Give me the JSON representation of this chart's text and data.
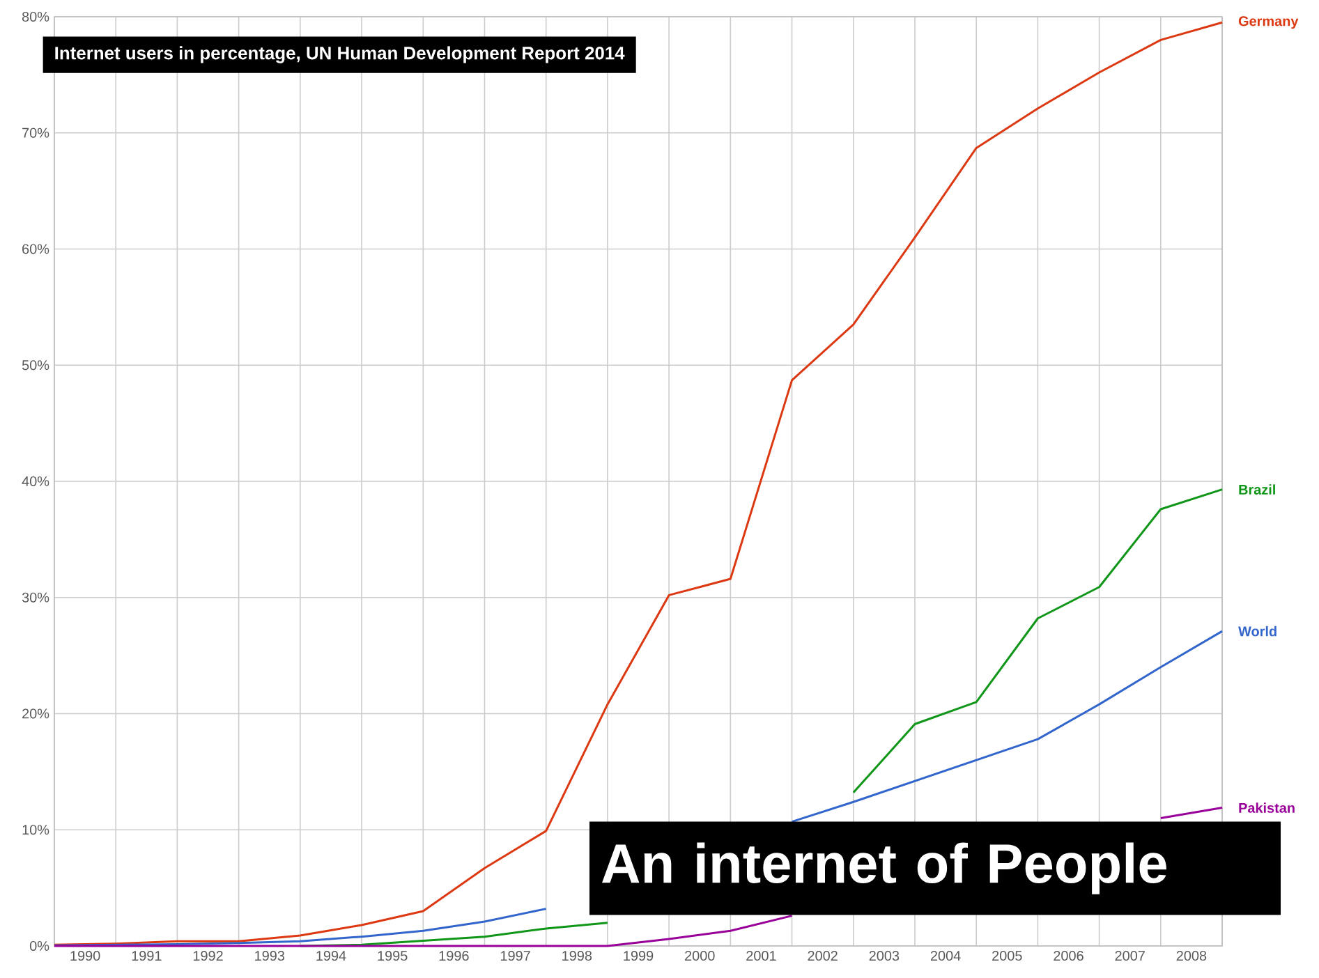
{
  "chart_data": {
    "type": "line",
    "title": "Internet users in percentage, UN Human Development Report 2014",
    "annotations": [
      "An internet of People"
    ],
    "x": [
      1989.5,
      1990.5,
      1991.5,
      1992.5,
      1993.5,
      1994.5,
      1995.5,
      1996.5,
      1997.5,
      1998.5,
      1999.5,
      2000.5,
      2001.5,
      2002.5,
      2003.5,
      2004.5,
      2005.5,
      2006.5,
      2007.5,
      2008.5
    ],
    "series": [
      {
        "name": "Germany",
        "color": "#dc3912",
        "values": [
          0.1,
          0.2,
          0.4,
          0.4,
          0.9,
          1.8,
          3.0,
          6.7,
          9.9,
          20.8,
          30.2,
          31.6,
          48.7,
          53.5,
          61.0,
          68.7,
          72.1,
          75.2,
          78.0,
          79.5
        ]
      },
      {
        "name": "Brazil",
        "color": "#109618",
        "values": [
          null,
          null,
          null,
          null,
          0,
          0.1,
          0.45,
          0.8,
          1.5,
          2.0,
          null,
          null,
          null,
          13.2,
          19.1,
          21.0,
          28.2,
          30.9,
          37.6,
          39.3
        ]
      },
      {
        "name": "World",
        "color": "#3366cc",
        "values": [
          0.05,
          0.1,
          0.15,
          0.25,
          0.4,
          0.8,
          1.3,
          2.1,
          3.2,
          null,
          null,
          null,
          10.7,
          12.4,
          14.2,
          16.0,
          17.8,
          20.8,
          24.0,
          27.1
        ]
      },
      {
        "name": "Pakistan",
        "color": "#990099",
        "values": [
          0,
          0,
          0,
          0,
          0,
          0,
          0,
          0,
          0,
          0,
          0.6,
          1.3,
          2.6,
          null,
          null,
          null,
          null,
          null,
          11.0,
          11.9
        ]
      }
    ],
    "xlim": [
      1989.5,
      2008.5
    ],
    "xticks": [
      1990,
      1991,
      1992,
      1993,
      1994,
      1995,
      1996,
      1997,
      1998,
      1999,
      2000,
      2001,
      2002,
      2003,
      2004,
      2005,
      2006,
      2007,
      2008
    ],
    "ylim": [
      0,
      80
    ],
    "yticks": [
      {
        "value": 0,
        "label": "0%"
      },
      {
        "value": 10,
        "label": "10%"
      },
      {
        "value": 20,
        "label": "20%"
      },
      {
        "value": 30,
        "label": "30%"
      },
      {
        "value": 40,
        "label": "40%"
      },
      {
        "value": 50,
        "label": "50%"
      },
      {
        "value": 60,
        "label": "60%"
      },
      {
        "value": 70,
        "label": "70%"
      },
      {
        "value": 80,
        "label": "80%"
      }
    ],
    "grid": true
  }
}
